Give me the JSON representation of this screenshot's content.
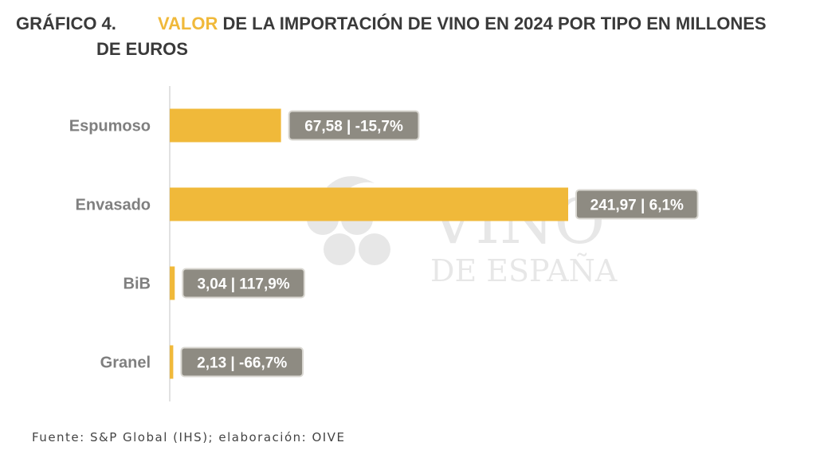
{
  "title": {
    "number": "GRÁFICO 4.",
    "highlight": "VALOR",
    "rest": " DE LA IMPORTACIÓN DE VINO EN 2024 POR TIPO EN MILLONES",
    "line2": "DE EUROS"
  },
  "watermark": {
    "line1": "VINO",
    "line2": "DE ESPAÑA"
  },
  "source": "Fuente: S&P Global (IHS); elaboración: OIVE",
  "colors": {
    "bar": "#f0b93a",
    "label_bg": "#8e8b82",
    "label_border": "#d9d7d1",
    "category_text": "#7f7f7f",
    "axis": "#d8d8d8"
  },
  "chart_data": {
    "type": "bar",
    "orientation": "horizontal",
    "title": "VALOR DE LA IMPORTACIÓN DE VINO EN 2024 POR TIPO EN MILLONES DE EUROS",
    "xlabel": "",
    "ylabel": "",
    "categories": [
      "Espumoso",
      "Envasado",
      "BiB",
      "Granel"
    ],
    "values": [
      67.58,
      241.97,
      3.04,
      2.13
    ],
    "changes_pct": [
      -15.7,
      6.1,
      117.9,
      -66.7
    ],
    "data_labels": [
      "67,58 | -15,7%",
      "241,97 | 6,1%",
      "3,04 | 117,9%",
      "2,13 | -66,7%"
    ],
    "xlim": [
      0,
      241.97
    ],
    "grid": false,
    "legend": "none"
  }
}
